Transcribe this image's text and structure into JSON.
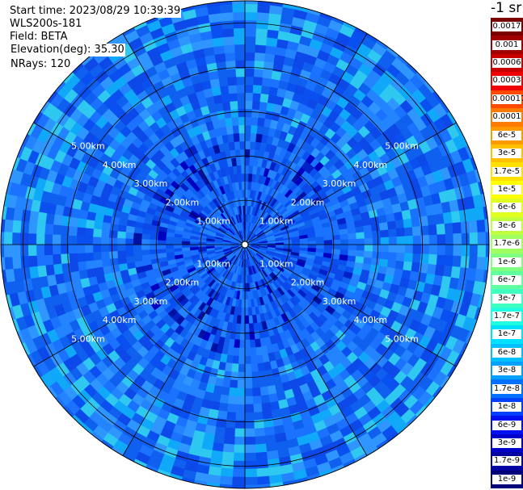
{
  "info": {
    "start_time": "Start time: 2023/08/29 10:39:39",
    "instrument": "WLS200s-181",
    "field": "Field: BETA",
    "elevation": "Elevation(deg): 35.30",
    "nrays": "NRays: 120"
  },
  "colorbar": {
    "title": "-1 sr",
    "labels": [
      "0.0017",
      "0.001",
      "0.0006",
      "0.0003",
      "0.00017",
      "0.0001",
      "6e-5",
      "3e-5",
      "1.7e-5",
      "1e-5",
      "6e-6",
      "3e-6",
      "1.7e-6",
      "1e-6",
      "6e-7",
      "3e-7",
      "1.7e-7",
      "1e-7",
      "6e-8",
      "3e-8",
      "1.7e-8",
      "1e-8",
      "6e-9",
      "3e-9",
      "1.7e-9",
      "1e-9"
    ],
    "colors": [
      "#7a0000",
      "#a00000",
      "#c80000",
      "#f00000",
      "#ff4a00",
      "#ff7a00",
      "#ff9a00",
      "#ffc000",
      "#ffe000",
      "#ffff00",
      "#e0ff20",
      "#c0ff40",
      "#a0ff60",
      "#80ff80",
      "#60ffa0",
      "#40ffc0",
      "#20ffe0",
      "#00e0ff",
      "#00c0ff",
      "#00a0ff",
      "#0070ff",
      "#0040ff",
      "#0010f0",
      "#0000c8",
      "#0000a0",
      "#000078"
    ]
  },
  "chart_data": {
    "type": "heatmap",
    "projection": "polar (PPI)",
    "field": "BETA",
    "rays": 120,
    "range_rings_km": [
      1,
      2,
      3,
      4,
      5
    ],
    "range_labels": [
      "1.00km",
      "2.00km",
      "3.00km",
      "4.00km",
      "5.00km"
    ],
    "max_range_km": 5.5,
    "azimuth_spokes_deg": [
      0,
      30,
      60,
      90,
      120,
      150,
      180,
      210,
      240,
      270,
      300,
      330
    ],
    "dominant_value_range": [
      "1e-8",
      "1.7e-7"
    ],
    "colorbar_unit": "-1 sr"
  }
}
